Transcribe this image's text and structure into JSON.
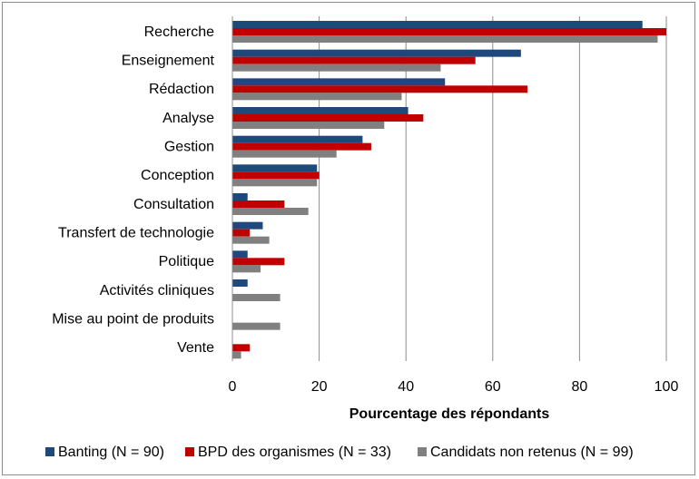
{
  "chart_data": {
    "type": "bar",
    "orientation": "horizontal",
    "title": "",
    "xlabel": "Pourcentage des répondants",
    "ylabel": "",
    "xlim": [
      0,
      100
    ],
    "xticks": [
      0,
      20,
      40,
      60,
      80,
      100
    ],
    "grid": "vertical",
    "legend_position": "bottom",
    "categories": [
      "Recherche",
      "Enseignement",
      "Rédaction",
      "Analyse",
      "Gestion",
      "Conception",
      "Consultation",
      "Transfert de technologie",
      "Politique",
      "Activités cliniques",
      "Mise au point de produits",
      "Vente"
    ],
    "series": [
      {
        "name": "Banting (N = 90)",
        "color": "#1f497d",
        "values": [
          94.5,
          66.5,
          49,
          40.5,
          30,
          19.5,
          3.5,
          7,
          3.5,
          3.5,
          0,
          0
        ]
      },
      {
        "name": "BPD des organismes (N = 33)",
        "color": "#c00000",
        "values": [
          100,
          56,
          68,
          44,
          32,
          20,
          12,
          4,
          12,
          0,
          0,
          4
        ]
      },
      {
        "name": "Candidats non retenus (N = 99)",
        "color": "#808080",
        "values": [
          98,
          48,
          39,
          35,
          24,
          19.5,
          17.5,
          8.5,
          6.5,
          11,
          11,
          2
        ]
      }
    ]
  }
}
